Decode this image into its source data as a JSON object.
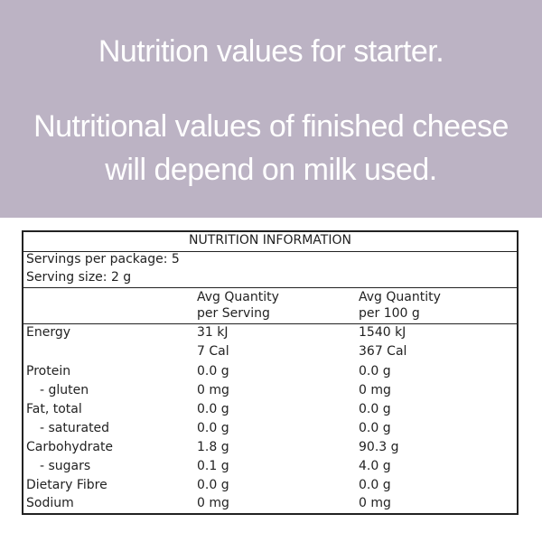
{
  "banner": {
    "line1": "Nutrition values for starter.",
    "line2": "Nutritional values of finished cheese",
    "line3": "will depend on milk used."
  },
  "panel": {
    "title": "NUTRITION INFORMATION",
    "servings_per_package": "Servings per package: 5",
    "serving_size": "Serving size: 2 g",
    "col_headers": {
      "per_serving_1": "Avg Quantity",
      "per_serving_2": "per Serving",
      "per_100g_1": "Avg Quantity",
      "per_100g_2": "per 100 g"
    },
    "rows": [
      {
        "label": "Energy",
        "per_serving": "31 kJ",
        "per_100g": "1540 kJ"
      },
      {
        "label": "",
        "per_serving": "7 Cal",
        "per_100g": "367 Cal"
      },
      {
        "label": "Protein",
        "per_serving": "0.0 g",
        "per_100g": "0.0 g"
      },
      {
        "label": "- gluten",
        "per_serving": "0 mg",
        "per_100g": "0 mg"
      },
      {
        "label": "Fat, total",
        "per_serving": "0.0 g",
        "per_100g": "0.0 g"
      },
      {
        "label": "- saturated",
        "per_serving": "0.0 g",
        "per_100g": "0.0 g"
      },
      {
        "label": "Carbohydrate",
        "per_serving": "1.8 g",
        "per_100g": "90.3 g"
      },
      {
        "label": "- sugars",
        "per_serving": "0.1 g",
        "per_100g": "4.0 g"
      },
      {
        "label": "Dietary Fibre",
        "per_serving": "0.0 g",
        "per_100g": "0.0 g"
      },
      {
        "label": "Sodium",
        "per_serving": "0 mg",
        "per_100g": "0 mg"
      }
    ]
  }
}
